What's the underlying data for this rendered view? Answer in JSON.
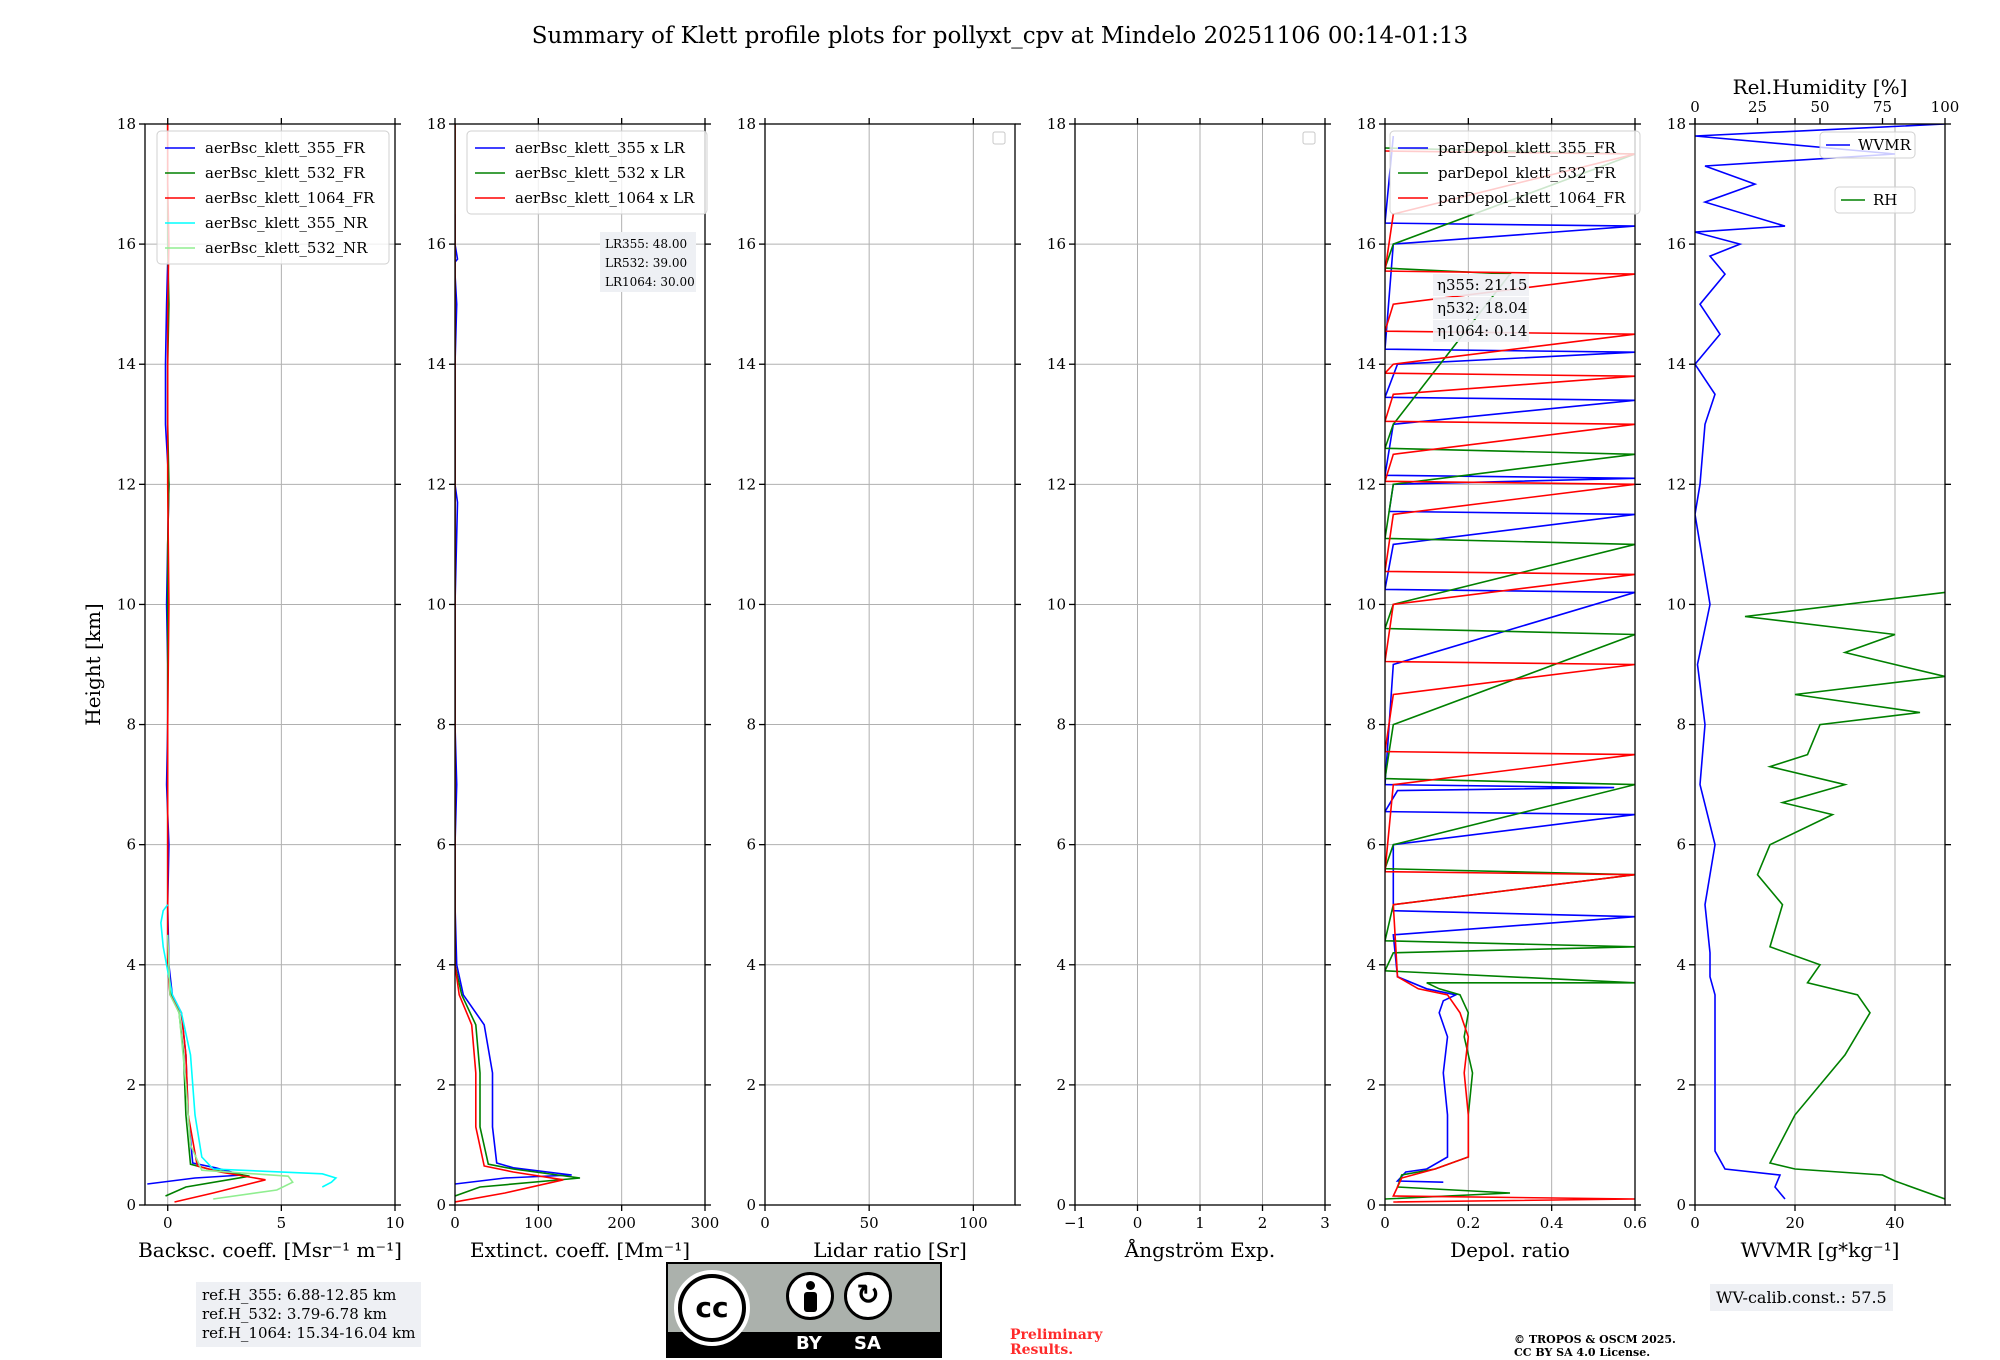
{
  "figure": {
    "title": "Summary of Klett profile plots for pollyxt_cpv at Mindelo 20251106 00:14-01:13",
    "ref_heights": [
      "ref.H_355: 6.88-12.85 km",
      "ref.H_532: 3.79-6.78 km",
      "ref.H_1064: 15.34-16.04 km"
    ],
    "license_badge": {
      "cc": "cc",
      "by": "BY",
      "sa": "SA"
    },
    "preliminary": [
      "Preliminary",
      "Results."
    ],
    "copyright": [
      "© TROPOS & OSCM 2025.",
      "CC BY SA 4.0 License."
    ],
    "wv_calib": "WV-calib.const.: 57.5"
  },
  "chart_data": [
    {
      "type": "line",
      "id": "bsc",
      "title": "",
      "ylabel": "Height [km]",
      "xlabel": "Backsc. coeff. [Msr⁻¹ m⁻¹]",
      "xlim": [
        -1,
        10
      ],
      "ylim": [
        0,
        18
      ],
      "xticks": [
        0,
        5,
        10
      ],
      "yticks": [
        0,
        2,
        4,
        6,
        8,
        10,
        12,
        14,
        16,
        18
      ],
      "legend": "top-right",
      "series": [
        {
          "name": "aerBsc_klett_355_FR",
          "color": "#0000ff",
          "x": [
            -0.9,
            1.2,
            3.3,
            2.1,
            1.1,
            0.9,
            0.8,
            0.6,
            0.2,
            0.05,
            0.0,
            0.05,
            -0.05,
            0.0,
            0.0,
            -0.05,
            0.0,
            0.05,
            -0.1,
            -0.1,
            -0.05,
            0.0
          ],
          "y": [
            0.35,
            0.45,
            0.5,
            0.62,
            0.7,
            1.5,
            2.5,
            3.2,
            3.5,
            4.0,
            5.0,
            6.0,
            7.0,
            8.0,
            9.0,
            10.0,
            11.0,
            12.0,
            13.0,
            14.0,
            15.0,
            15.7
          ]
        },
        {
          "name": "aerBsc_klett_532_FR",
          "color": "#008000",
          "x": [
            -0.1,
            0.8,
            3.6,
            1.8,
            1.0,
            0.8,
            0.7,
            0.5,
            0.15,
            0.0,
            0.0,
            0.0,
            0.0,
            0.0,
            0.05,
            0.0,
            0.0,
            0.05,
            0.0,
            0.0,
            0.0,
            0.0
          ],
          "y": [
            0.15,
            0.3,
            0.48,
            0.6,
            0.68,
            1.5,
            2.5,
            3.2,
            3.5,
            4.0,
            6.0,
            8.0,
            10.0,
            11.0,
            12.0,
            13.0,
            14.0,
            15.0,
            16.0,
            17.0,
            17.5,
            18.0
          ]
        },
        {
          "name": "aerBsc_klett_1064_FR",
          "color": "#ff0000",
          "x": [
            0.3,
            2.0,
            4.3,
            2.3,
            1.3,
            0.9,
            0.8,
            0.6,
            0.1,
            0.0,
            0.0,
            0.0,
            0.05,
            0.0,
            0.0,
            0.0,
            0.05,
            0.0,
            0.0
          ],
          "y": [
            0.05,
            0.2,
            0.42,
            0.55,
            0.65,
            1.5,
            2.5,
            3.2,
            3.5,
            4.0,
            6.0,
            8.0,
            10.0,
            12.0,
            14.0,
            15.0,
            16.0,
            17.0,
            18.0
          ]
        },
        {
          "name": "aerBsc_klett_355_NR",
          "color": "#00ffff",
          "x": [
            6.8,
            7.2,
            7.4,
            6.8,
            2.0,
            1.5,
            1.2,
            1.0,
            0.6,
            0.2,
            0.0,
            -0.2,
            -0.3,
            -0.2,
            0.0
          ],
          "y": [
            0.3,
            0.38,
            0.45,
            0.52,
            0.6,
            0.8,
            1.5,
            2.5,
            3.2,
            3.5,
            3.9,
            4.3,
            4.7,
            4.9,
            5.0
          ]
        },
        {
          "name": "aerBsc_klett_532_NR",
          "color": "#90ee90",
          "x": [
            2.0,
            4.8,
            5.5,
            5.3,
            1.5,
            1.0,
            0.8,
            0.5,
            0.1,
            0.0
          ],
          "y": [
            0.1,
            0.25,
            0.38,
            0.48,
            0.58,
            1.0,
            2.0,
            3.2,
            3.5,
            4.5
          ]
        }
      ]
    },
    {
      "type": "line",
      "id": "ext",
      "xlabel": "Extinct. coeff. [Mm⁻¹]",
      "xlim": [
        0,
        300
      ],
      "ylim": [
        0,
        18
      ],
      "xticks": [
        0,
        100,
        200,
        300
      ],
      "yticks": [
        0,
        2,
        4,
        6,
        8,
        10,
        12,
        14,
        16,
        18
      ],
      "legend": "top-right",
      "lidar_ratios": [
        "LR355: 48.00",
        "LR532: 39.00",
        "LR1064: 30.00"
      ],
      "series": [
        {
          "name": "aerBsc_klett_355 x LR",
          "color": "#0000ff",
          "x": [
            0,
            60,
            140,
            70,
            50,
            45,
            45,
            35,
            10,
            2,
            0,
            0,
            2,
            0,
            0,
            3,
            0,
            0,
            2,
            0,
            0,
            3,
            0,
            0
          ],
          "y": [
            0.35,
            0.45,
            0.5,
            0.62,
            0.7,
            1.3,
            2.2,
            3.0,
            3.5,
            4.0,
            5.0,
            6.0,
            7.0,
            8.0,
            10.0,
            11.7,
            12.0,
            14.0,
            15.0,
            15.5,
            15.7,
            15.75,
            16.0,
            16.5
          ]
        },
        {
          "name": "aerBsc_klett_532 x LR",
          "color": "#008000",
          "x": [
            0,
            30,
            150,
            70,
            40,
            30,
            30,
            25,
            8,
            0,
            0,
            0,
            0,
            0,
            0
          ],
          "y": [
            0.15,
            0.3,
            0.45,
            0.6,
            0.68,
            1.3,
            2.2,
            3.0,
            3.5,
            4.0,
            6.0,
            10.0,
            14.0,
            16.0,
            18.0
          ]
        },
        {
          "name": "aerBsc_klett_1064 x LR",
          "color": "#ff0000",
          "x": [
            0,
            60,
            130,
            70,
            35,
            25,
            25,
            20,
            5,
            0,
            0,
            0,
            0,
            0
          ],
          "y": [
            0.05,
            0.2,
            0.42,
            0.55,
            0.65,
            1.3,
            2.2,
            3.0,
            3.5,
            4.0,
            8.0,
            12.0,
            16.0,
            18.0
          ]
        }
      ]
    },
    {
      "type": "line",
      "id": "lr",
      "xlabel": "Lidar ratio [Sr]",
      "xlim": [
        0,
        120
      ],
      "ylim": [
        0,
        18
      ],
      "xticks": [
        0,
        50,
        100
      ],
      "yticks": [
        0,
        2,
        4,
        6,
        8,
        10,
        12,
        14,
        16,
        18
      ],
      "legend": "top-right",
      "series": []
    },
    {
      "type": "line",
      "id": "ang",
      "xlabel": "Ångström Exp.",
      "xlim": [
        -1,
        3
      ],
      "ylim": [
        0,
        18
      ],
      "xticks": [
        -1,
        0,
        1,
        2,
        3
      ],
      "yticks": [
        0,
        2,
        4,
        6,
        8,
        10,
        12,
        14,
        16,
        18
      ],
      "legend": "top-right",
      "series": []
    },
    {
      "type": "line",
      "id": "dep",
      "xlabel": "Depol. ratio",
      "xlim": [
        0,
        0.6
      ],
      "ylim": [
        0,
        18
      ],
      "xticks": [
        0.0,
        0.2,
        0.4,
        0.6
      ],
      "yticks": [
        0,
        2,
        4,
        6,
        8,
        10,
        12,
        14,
        16,
        18
      ],
      "legend": "top-right",
      "eta": [
        "η355: 21.15",
        "η532: 18.04",
        "η1064: 0.14"
      ],
      "series": [
        {
          "name": "parDepol_klett_355_FR",
          "color": "#0000ff",
          "x": [
            0.14,
            0.03,
            0.05,
            0.1,
            0.15,
            0.15,
            0.14,
            0.15,
            0.13,
            0.14,
            0.17,
            0.1,
            0.03,
            0.02,
            0.6,
            0.02,
            0.02,
            0.6,
            0.0,
            0.03,
            0.55,
            0.0,
            0.02,
            0.6,
            0.0,
            0.02,
            0.6,
            0.01,
            0.02,
            0.6,
            0.0,
            0.02,
            0.6,
            0.0,
            0.03,
            0.6,
            0.0,
            0.02,
            0.6,
            0.0,
            0.02
          ],
          "y": [
            0.38,
            0.4,
            0.55,
            0.6,
            0.8,
            1.5,
            2.2,
            2.8,
            3.2,
            3.4,
            3.5,
            3.6,
            3.8,
            4.5,
            4.8,
            4.9,
            6.0,
            6.5,
            6.55,
            6.9,
            6.95,
            7.0,
            9.0,
            10.2,
            10.25,
            11.0,
            11.5,
            11.55,
            12.0,
            12.1,
            12.15,
            13.0,
            13.4,
            13.45,
            14.0,
            14.2,
            14.25,
            16.0,
            16.3,
            16.35,
            17.8
          ]
        },
        {
          "name": "parDepol_klett_532_FR",
          "color": "#008000",
          "x": [
            0.0,
            0.3,
            0.03,
            0.04,
            0.12,
            0.2,
            0.2,
            0.21,
            0.19,
            0.2,
            0.18,
            0.13,
            0.1,
            0.6,
            0.0,
            0.02,
            0.6,
            0.0,
            0.02,
            0.6,
            0.0,
            0.02,
            0.6,
            0.0,
            0.02,
            0.6,
            0.0,
            0.02,
            0.6,
            0.0,
            0.02,
            0.6,
            0.0,
            0.02,
            0.3,
            0.0,
            0.02,
            0.6,
            0.0
          ],
          "y": [
            0.1,
            0.2,
            0.3,
            0.5,
            0.6,
            0.8,
            1.5,
            2.2,
            2.8,
            3.2,
            3.5,
            3.6,
            3.7,
            3.7,
            3.9,
            4.2,
            4.3,
            4.4,
            5.0,
            5.5,
            5.6,
            6.0,
            7.0,
            7.1,
            8.0,
            9.5,
            9.6,
            10.0,
            11.0,
            11.1,
            12.0,
            12.5,
            12.6,
            13.0,
            15.5,
            15.6,
            16.0,
            17.5,
            17.6
          ]
        },
        {
          "name": "parDepol_klett_1064_FR",
          "color": "#ff0000",
          "x": [
            0.02,
            0.6,
            0.02,
            0.04,
            0.12,
            0.2,
            0.2,
            0.19,
            0.2,
            0.18,
            0.15,
            0.08,
            0.03,
            0.02,
            0.6,
            0.0,
            0.02,
            0.6,
            0.0,
            0.02,
            0.6,
            0.0,
            0.02,
            0.6,
            0.0,
            0.02,
            0.6,
            0.0,
            0.02,
            0.6,
            0.0,
            0.02,
            0.6,
            0.0,
            0.02,
            0.6,
            0.0,
            0.02,
            0.6,
            0.0,
            0.02,
            0.6,
            0.0
          ],
          "y": [
            0.05,
            0.1,
            0.15,
            0.45,
            0.6,
            0.8,
            1.5,
            2.2,
            2.8,
            3.2,
            3.5,
            3.6,
            3.8,
            5.0,
            5.5,
            5.55,
            7.0,
            7.5,
            7.55,
            8.5,
            9.0,
            9.05,
            10.0,
            10.5,
            10.55,
            11.5,
            12.0,
            12.05,
            12.5,
            13.0,
            13.05,
            13.5,
            13.8,
            13.85,
            14.0,
            14.5,
            14.55,
            15.0,
            15.5,
            15.55,
            16.5,
            17.5,
            17.55
          ]
        }
      ]
    },
    {
      "type": "line",
      "id": "wv",
      "xlabel": "WVMR [g*kg⁻¹]",
      "xlim": [
        0,
        50
      ],
      "ylim": [
        0,
        18
      ],
      "xticks": [
        0,
        20,
        40
      ],
      "yticks": [
        0,
        2,
        4,
        6,
        8,
        10,
        12,
        14,
        16,
        18
      ],
      "top_axis": {
        "label": "Rel.Humidity [%]",
        "lim": [
          0,
          100
        ],
        "ticks": [
          0,
          25,
          50,
          75,
          100
        ]
      },
      "legend": "top-right",
      "series": [
        {
          "name": "WVMR",
          "color": "#0000ff",
          "axis": "bottom",
          "x": [
            18,
            16,
            17,
            6,
            4,
            4,
            4,
            3,
            3,
            2,
            4,
            1,
            2,
            0.5,
            3,
            1,
            0,
            1,
            2,
            4,
            0,
            5,
            1,
            6,
            3,
            9,
            0,
            18,
            2,
            12,
            2,
            40,
            0,
            50
          ],
          "y": [
            0.1,
            0.3,
            0.5,
            0.6,
            0.9,
            2.0,
            3.5,
            3.8,
            4.2,
            5.0,
            6.0,
            7.0,
            8.0,
            9.0,
            10.0,
            11.0,
            11.5,
            12.0,
            13.0,
            13.5,
            14.0,
            14.5,
            15.0,
            15.5,
            15.8,
            16.0,
            16.2,
            16.3,
            16.7,
            17.0,
            17.3,
            17.5,
            17.8,
            18.0
          ]
        },
        {
          "name": "RH",
          "color": "#008000",
          "axis": "top",
          "x": [
            100,
            80,
            75,
            40,
            30,
            40,
            60,
            70,
            65,
            45,
            50,
            30,
            35,
            25,
            30,
            55,
            35,
            60,
            30,
            45,
            50,
            90,
            40,
            100,
            60,
            80,
            20,
            100
          ],
          "y": [
            0.1,
            0.4,
            0.5,
            0.6,
            0.7,
            1.5,
            2.5,
            3.2,
            3.5,
            3.7,
            4.0,
            4.3,
            5.0,
            5.5,
            6.0,
            6.5,
            6.7,
            7.0,
            7.3,
            7.5,
            8.0,
            8.2,
            8.5,
            8.8,
            9.2,
            9.5,
            9.8,
            10.2
          ]
        }
      ]
    }
  ]
}
